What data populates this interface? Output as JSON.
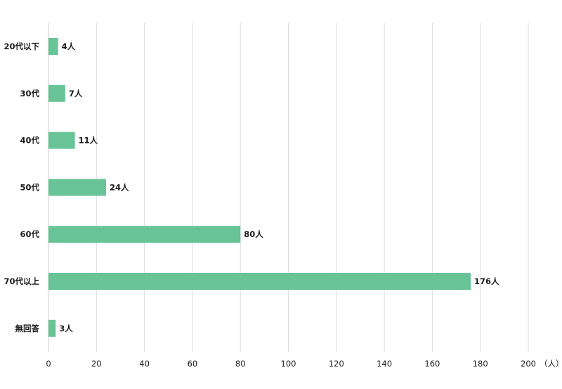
{
  "chart_data": {
    "type": "bar",
    "orientation": "horizontal",
    "categories": [
      "20代以下",
      "30代",
      "40代",
      "50代",
      "60代",
      "70代以上",
      "無回答"
    ],
    "values": [
      4,
      7,
      11,
      24,
      80,
      176,
      3
    ],
    "value_labels": [
      "4人",
      "7人",
      "11人",
      "24人",
      "80人",
      "176人",
      "3人"
    ],
    "x_ticks": [
      "0",
      "20",
      "40",
      "60",
      "80",
      "100",
      "120",
      "140",
      "160",
      "180",
      "200"
    ],
    "x_tick_values": [
      0,
      20,
      40,
      60,
      80,
      100,
      120,
      140,
      160,
      180,
      200
    ],
    "x_unit": "（人）",
    "xlim": [
      0,
      200
    ],
    "grid": true,
    "legend": "none",
    "bar_color": "#68c497",
    "grid_color": "#dcdcdc",
    "text_color": "#1a1a1a"
  }
}
